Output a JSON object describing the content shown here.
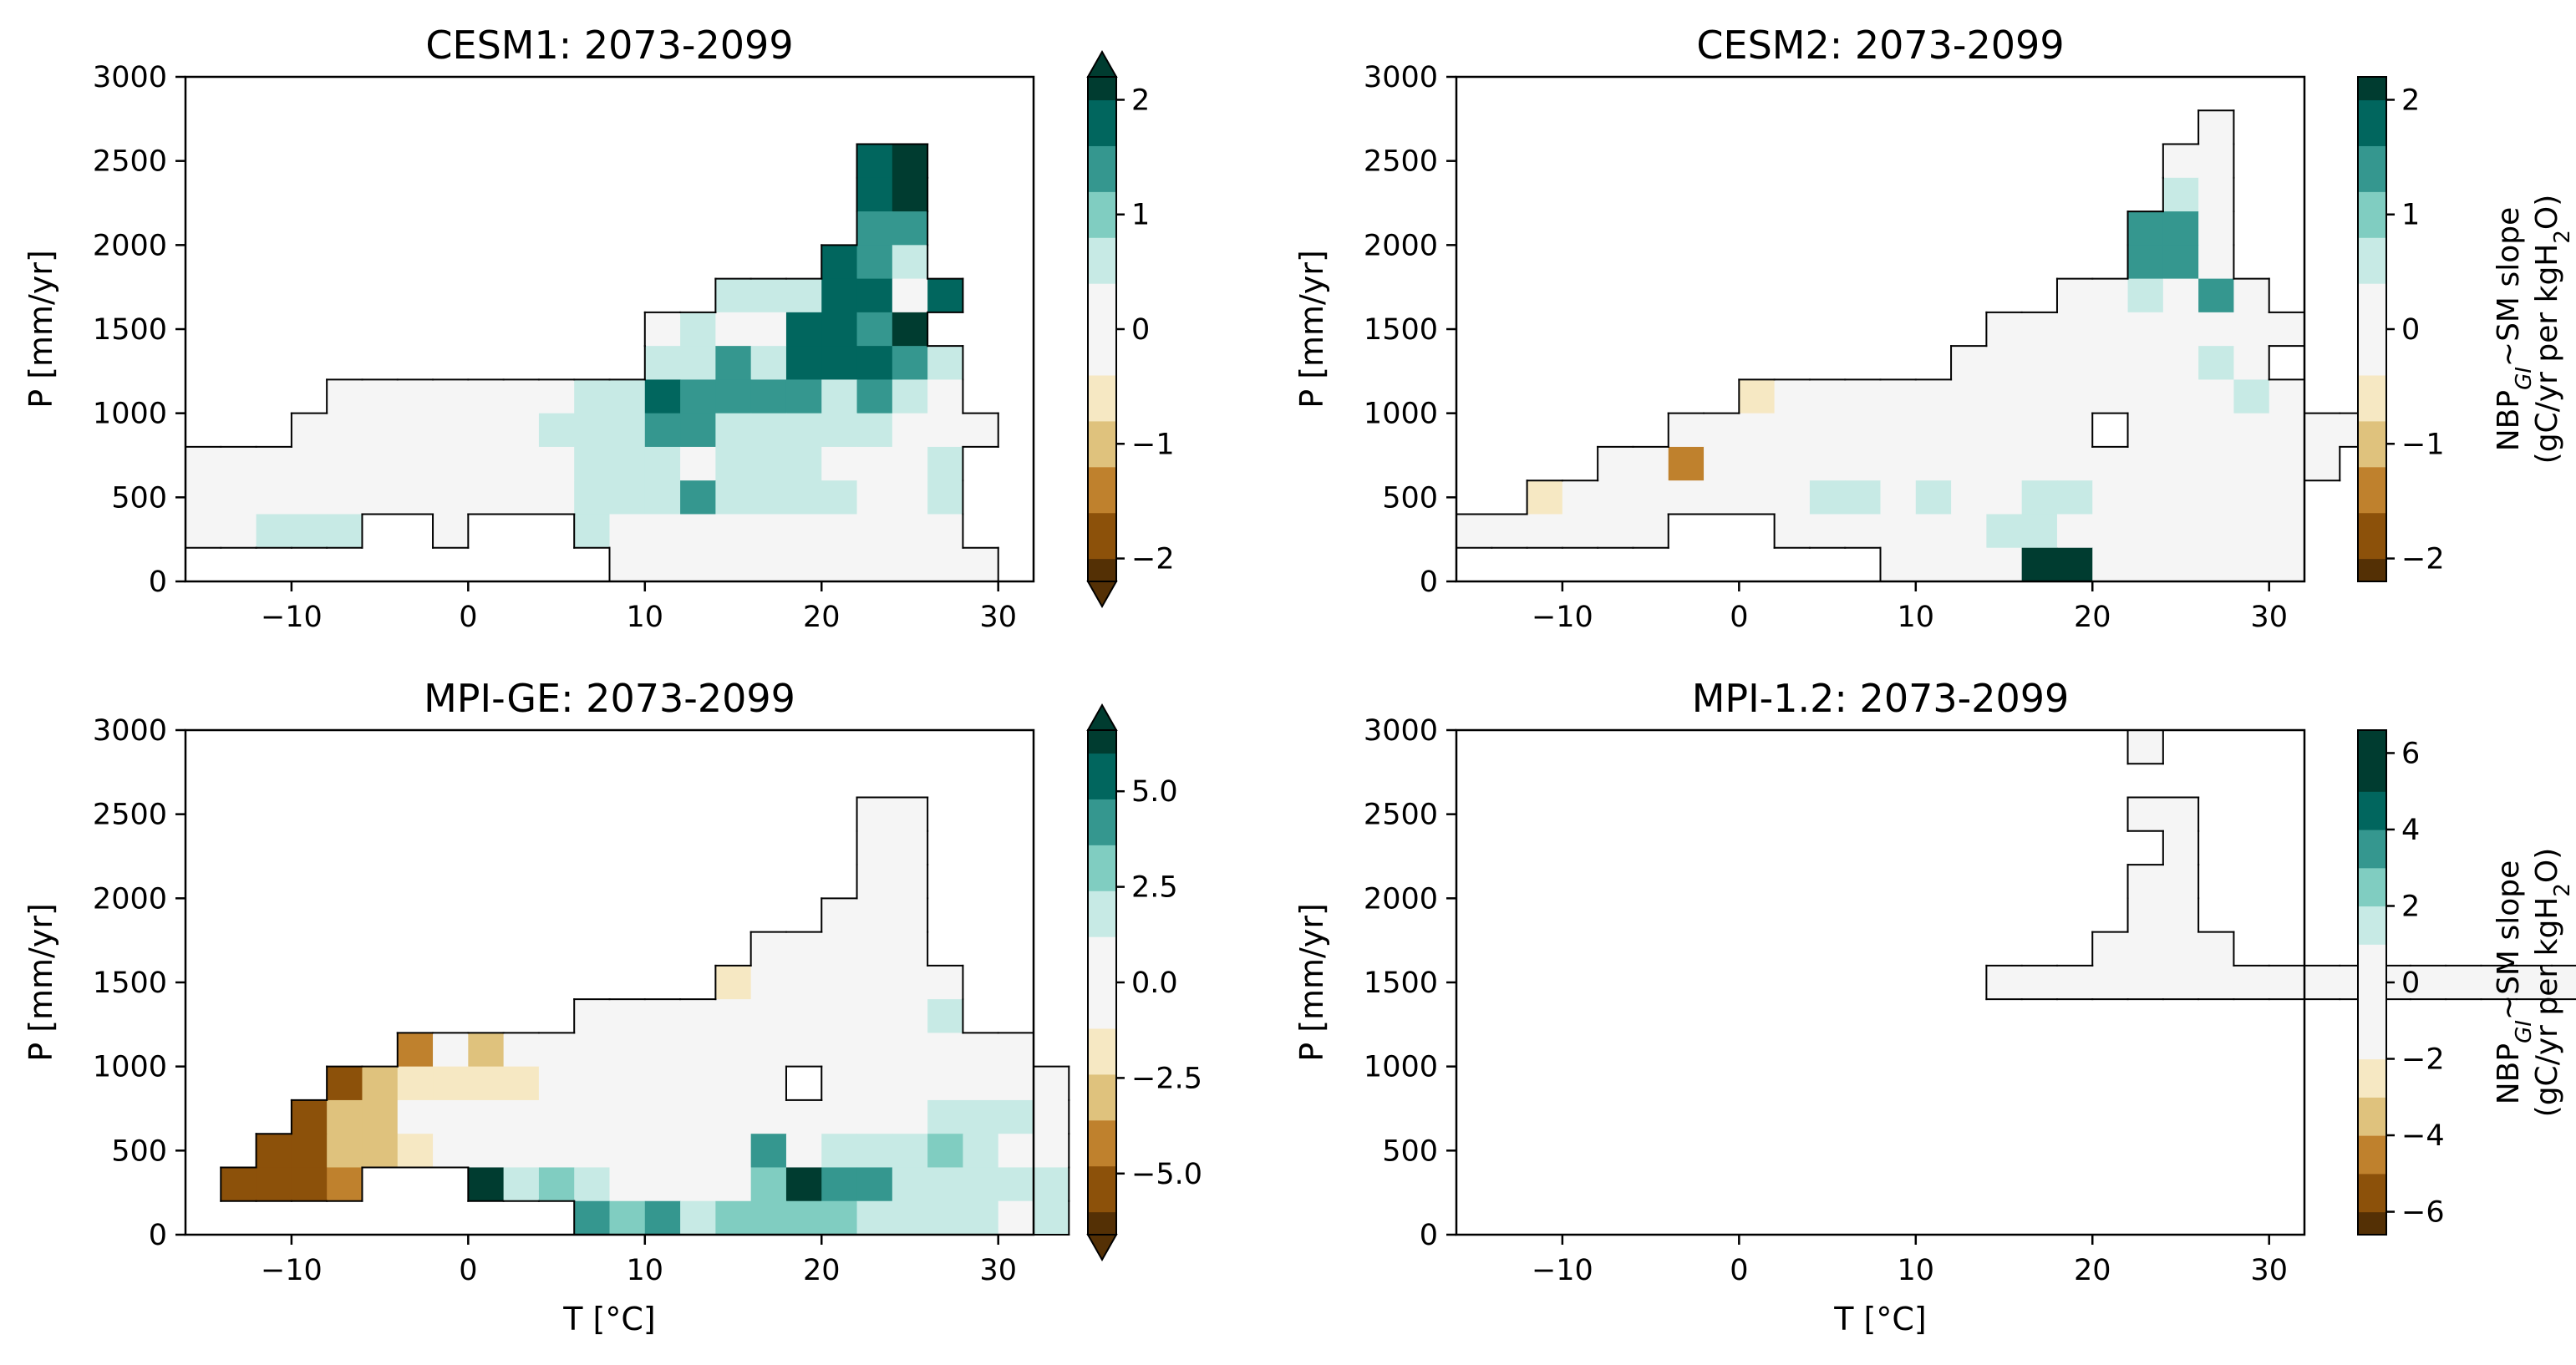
{
  "chart_data": [
    {
      "type": "heatmap",
      "title": "CESM1: 2073-2099",
      "xlabel": "",
      "ylabel": "P [mm/yr]",
      "xlim": [
        -16,
        32
      ],
      "ylim": [
        0,
        3000
      ],
      "xticks": [
        "−10",
        "0",
        "10",
        "20",
        "30"
      ],
      "yticks": [
        "0",
        "500",
        "1000",
        "1500",
        "2000",
        "2500",
        "3000"
      ],
      "bin": {
        "dx": 2,
        "dy": 200
      },
      "colorbar": {
        "levels": [
          -2.2,
          -2,
          -1.6,
          -1.2,
          -0.8,
          -0.4,
          0,
          0.4,
          0.8,
          1.2,
          1.6,
          2,
          2.2
        ],
        "ticks": [
          "−2",
          "−1",
          "0",
          "1",
          "2"
        ],
        "tick_values": [
          -2,
          -1,
          0,
          1,
          2
        ],
        "extend": "both",
        "label": ""
      },
      "rows": [
        {
          "y": 2400,
          "x0": 22,
          "v": [
            1.9,
            2.1
          ]
        },
        {
          "y": 2200,
          "x0": 22,
          "v": [
            1.9,
            2.1
          ]
        },
        {
          "y": 2000,
          "x0": 22,
          "v": [
            1.3,
            1.3
          ]
        },
        {
          "y": 1800,
          "x0": 20,
          "v": [
            1.9,
            1.3,
            0.6
          ]
        },
        {
          "y": 1600,
          "x0": 14,
          "v": [
            0.6,
            0.6,
            0.6,
            1.9,
            1.9,
            0.2,
            1.9
          ]
        },
        {
          "y": 1400,
          "x0": 10,
          "v": [
            0.2,
            0.6,
            0.2,
            0.2,
            1.9,
            1.9,
            1.3,
            2.1
          ]
        },
        {
          "y": 1200,
          "x0": 10,
          "v": [
            0.6,
            0.6,
            1.3,
            0.6,
            1.6,
            1.6,
            1.9,
            1.3,
            0.6
          ]
        },
        {
          "y": 1000,
          "x0": -8,
          "v": [
            0.02,
            0.02,
            0.02,
            0.2,
            0.2,
            0.2,
            0.2,
            0.6,
            0.6,
            1.9,
            1.3,
            1.3,
            1.3,
            1.3,
            0.6,
            1.3,
            0.6,
            0.02
          ]
        },
        {
          "y": 800,
          "x0": -10,
          "v": [
            0.02,
            0.02,
            0.02,
            0.02,
            0.02,
            0.2,
            0.2,
            0.6,
            0.6,
            0.6,
            1.3,
            1.3,
            0.6,
            0.6,
            0.6,
            0.6,
            0.6,
            0.2,
            0.2,
            0.02
          ]
        },
        {
          "y": 600,
          "x0": -16,
          "v": [
            0.02,
            0.02,
            0.02,
            0.02,
            0.02,
            0.02,
            0.02,
            0.02,
            0.2,
            0.2,
            0.2,
            0.6,
            0.6,
            0.6,
            0.2,
            0.6,
            0.6,
            0.6,
            0.2,
            0.02,
            0.2,
            0.6
          ]
        },
        {
          "y": 400,
          "x0": -16,
          "v": [
            0.02,
            0.02,
            0.02,
            0.02,
            0.02,
            0.02,
            0.02,
            0.02,
            0.02,
            0.2,
            0.2,
            0.6,
            0.6,
            0.6,
            1.3,
            0.6,
            0.6,
            0.6,
            0.6,
            0.02,
            0.2,
            0.6
          ]
        },
        {
          "y": 200,
          "x0": -16,
          "v": [
            0.02,
            0.02,
            0.6,
            0.6,
            0.6,
            null,
            null,
            0.2,
            null,
            null,
            null,
            0.6,
            0.2,
            0.2,
            0.2,
            0.2,
            0.2,
            0.2,
            0.2,
            0.02,
            0.02,
            0.02
          ]
        },
        {
          "y": 0,
          "x0": 8,
          "v": [
            0.02,
            0.02,
            0.02,
            0.2,
            0.2,
            0.2,
            0.2,
            0.2,
            0.02,
            0.02,
            0.02
          ]
        }
      ]
    },
    {
      "type": "heatmap",
      "title": "CESM2: 2073-2099",
      "xlabel": "",
      "ylabel": "P [mm/yr]",
      "xlim": [
        -16,
        32
      ],
      "ylim": [
        0,
        3000
      ],
      "xticks": [
        "−10",
        "0",
        "10",
        "20",
        "30"
      ],
      "yticks": [
        "0",
        "500",
        "1000",
        "1500",
        "2000",
        "2500",
        "3000"
      ],
      "bin": {
        "dx": 2,
        "dy": 200
      },
      "colorbar": {
        "levels": [
          -2.2,
          -2,
          -1.6,
          -1.2,
          -0.8,
          -0.4,
          0,
          0.4,
          0.8,
          1.2,
          1.6,
          2,
          2.2
        ],
        "ticks": [
          "−2",
          "−1",
          "0",
          "1",
          "2"
        ],
        "tick_values": [
          -2,
          -1,
          0,
          1,
          2
        ],
        "extend": "neither",
        "label": "NBP_GI~SM slope (gC/yr per kgH2O)",
        "label_line1_parts": [
          "NBP",
          "GI",
          "~SM slope"
        ],
        "label_line2_parts": [
          "(gC/yr per kgH",
          "2",
          "O)"
        ]
      },
      "rows": [
        {
          "y": 2600,
          "x0": 26,
          "v": [
            0.2
          ]
        },
        {
          "y": 2400,
          "x0": 24,
          "v": [
            0.2,
            0.2
          ]
        },
        {
          "y": 2200,
          "x0": 24,
          "v": [
            0.6,
            0.2
          ]
        },
        {
          "y": 2000,
          "x0": 22,
          "v": [
            1.3,
            1.3,
            0.2
          ]
        },
        {
          "y": 1800,
          "x0": 22,
          "v": [
            1.3,
            1.3,
            0.2
          ]
        },
        {
          "y": 1600,
          "x0": 18,
          "v": [
            0.02,
            0.2,
            0.6,
            0.2,
            1.3,
            0.2
          ]
        },
        {
          "y": 1400,
          "x0": 14,
          "v": [
            0.02,
            0.02,
            -0.3,
            0.02,
            0.2,
            0.2,
            0.2,
            0.2,
            0.2
          ]
        },
        {
          "y": 1200,
          "x0": 12,
          "v": [
            0.02,
            0.2,
            0.02,
            0.02,
            0.2,
            0.2,
            0.2,
            0.6,
            0.2
          ]
        },
        {
          "y": 1000,
          "x0": 0,
          "v": [
            -0.6,
            0.02,
            0.02,
            0.02,
            0.02,
            0.02,
            0.02,
            0.2,
            0.2,
            0.2,
            0.02,
            0.2,
            0.2,
            0.2,
            0.6,
            0.2
          ]
        },
        {
          "y": 800,
          "x0": -4,
          "v": [
            0.02,
            0.02,
            -0.3,
            0.02,
            -0.3,
            -0.3,
            0.02,
            0.2,
            0.02,
            0.02,
            0.02,
            0.02,
            null,
            0.2,
            0.2,
            0.2,
            0.2,
            0.2,
            0.02,
            0.2
          ]
        },
        {
          "y": 600,
          "x0": -8,
          "v": [
            -0.3,
            -0.3,
            -1.3,
            -0.3,
            0.02,
            0.02,
            0.02,
            0.02,
            0.2,
            0.2,
            0.2,
            0.2,
            0.2,
            0.2,
            0.2,
            0.02,
            0.2,
            0.02,
            0.02,
            0.02,
            0.02
          ]
        },
        {
          "y": 400,
          "x0": -12,
          "v": [
            -0.6,
            0.02,
            0.02,
            0.02,
            0.02,
            0.02,
            0.02,
            0.02,
            0.6,
            0.6,
            0.2,
            0.6,
            0.2,
            0.2,
            0.6,
            0.6,
            0.2,
            0.02,
            0.02,
            0.02,
            0.02,
            0.02
          ]
        },
        {
          "y": 200,
          "x0": -16,
          "v": [
            0.02,
            0.02,
            -0.3,
            0.02,
            0.02,
            0.02,
            null,
            null,
            null,
            0.02,
            0.2,
            0.2,
            0.2,
            0.2,
            0.2,
            0.6,
            0.6,
            0.2,
            0.02,
            0.02,
            0.02,
            0.02,
            0.02,
            0.02
          ]
        },
        {
          "y": 0,
          "x0": 8,
          "v": [
            0.2,
            0.2,
            0.2,
            0.2,
            2.1,
            2.1,
            0.2,
            0.2,
            0.02,
            0.02,
            0.02,
            0.02
          ]
        }
      ]
    },
    {
      "type": "heatmap",
      "title": "MPI-GE: 2073-2099",
      "xlabel": "T [°C]",
      "ylabel": "P [mm/yr]",
      "xlim": [
        -16,
        32
      ],
      "ylim": [
        0,
        3000
      ],
      "xticks": [
        "−10",
        "0",
        "10",
        "20",
        "30"
      ],
      "yticks": [
        "0",
        "500",
        "1000",
        "1500",
        "2000",
        "2500",
        "3000"
      ],
      "bin": {
        "dx": 2,
        "dy": 200
      },
      "colorbar": {
        "levels": [
          -6.6,
          -6,
          -4.8,
          -3.6,
          -2.4,
          -1.2,
          0,
          1.2,
          2.4,
          3.6,
          4.8,
          6,
          6.6
        ],
        "ticks": [
          "−5.0",
          "−2.5",
          "0.0",
          "2.5",
          "5.0"
        ],
        "tick_values": [
          -5,
          -2.5,
          0,
          2.5,
          5
        ],
        "extend": "both",
        "label": ""
      },
      "rows": [
        {
          "y": 2400,
          "x0": 22,
          "v": [
            0.02,
            0.02
          ]
        },
        {
          "y": 2200,
          "x0": 22,
          "v": [
            -0.6,
            0.02
          ]
        },
        {
          "y": 2000,
          "x0": 22,
          "v": [
            -0.6,
            0.02
          ]
        },
        {
          "y": 1800,
          "x0": 20,
          "v": [
            0.02,
            0.02,
            0.02
          ]
        },
        {
          "y": 1600,
          "x0": 16,
          "v": [
            0.02,
            0.02,
            0.02,
            0.02,
            0.02
          ]
        },
        {
          "y": 1400,
          "x0": 14,
          "v": [
            -1.8,
            0.02,
            0.02,
            0.02,
            0.6,
            0.6,
            0.02
          ]
        },
        {
          "y": 1200,
          "x0": 6,
          "v": [
            -0.6,
            -0.6,
            0.02,
            0.02,
            0.02,
            0.6,
            0.6,
            0.6,
            0.6,
            0.6,
            1.8
          ]
        },
        {
          "y": 1000,
          "x0": -4,
          "v": [
            -4.2,
            0.02,
            -3.0,
            0.02,
            -0.6,
            -0.6,
            0.02,
            0.02,
            0.02,
            0.02,
            0.02,
            0.02,
            0.02,
            0.6,
            0.6,
            0.6,
            0.6,
            0.6
          ]
        },
        {
          "y": 800,
          "x0": -8,
          "v": [
            -5.4,
            -3.0,
            -1.8,
            -1.8,
            -1.8,
            -1.8,
            -0.6,
            -0.6,
            0.02,
            0.02,
            0.02,
            0.02,
            0.02,
            null,
            0.02,
            0.2,
            0.6,
            0.6,
            0.6,
            0.6,
            0.6
          ]
        },
        {
          "y": 600,
          "x0": -10,
          "v": [
            -5.4,
            -3.0,
            -3.0,
            -0.6,
            -0.6,
            0.02,
            0.02,
            0.02,
            0.02,
            0.02,
            0.02,
            0.6,
            0.02,
            0.02,
            0.6,
            0.6,
            0.6,
            0.6,
            1.8,
            1.8,
            1.8,
            0.6
          ]
        },
        {
          "y": 400,
          "x0": -12,
          "v": [
            -5.4,
            -5.4,
            -3.0,
            -3.0,
            -1.8,
            -0.6,
            0.02,
            0.6,
            0.02,
            0.02,
            0.02,
            0.6,
            0.6,
            0.02,
            4.2,
            0.6,
            1.8,
            1.8,
            1.8,
            3.0,
            1.8,
            0.6,
            0.6
          ]
        },
        {
          "y": 200,
          "x0": -14,
          "v": [
            -5.4,
            -5.4,
            -5.4,
            -4.2,
            null,
            null,
            null,
            6.3,
            1.8,
            3.0,
            1.8,
            0.6,
            0.6,
            0.6,
            0.6,
            3.0,
            6.3,
            4.2,
            4.2,
            1.8,
            1.8,
            1.8,
            1.8,
            1.8
          ]
        },
        {
          "y": 0,
          "x0": 6,
          "v": [
            4.2,
            3.0,
            4.2,
            1.8,
            3.0,
            3.0,
            3.0,
            3.0,
            1.8,
            1.8,
            1.8,
            1.8,
            0.6,
            1.8
          ]
        }
      ]
    },
    {
      "type": "heatmap",
      "title": "MPI-1.2: 2073-2099",
      "xlabel": "T [°C]",
      "ylabel": "P [mm/yr]",
      "xlim": [
        -16,
        32
      ],
      "ylim": [
        0,
        3000
      ],
      "xticks": [
        "−10",
        "0",
        "10",
        "20",
        "30"
      ],
      "yticks": [
        "0",
        "500",
        "1000",
        "1500",
        "2000",
        "2500",
        "3000"
      ],
      "bin": {
        "dx": 2,
        "dy": 200
      },
      "colorbar": {
        "levels": [
          -6.6,
          -6,
          -5,
          -4,
          -3,
          -2,
          -1,
          0,
          1,
          2,
          3,
          4,
          5,
          6,
          6.6
        ],
        "ticks": [
          "−6",
          "−4",
          "−2",
          "0",
          "2",
          "4",
          "6"
        ],
        "tick_values": [
          -6,
          -4,
          -2,
          0,
          2,
          4,
          6
        ],
        "extend": "neither",
        "label": "NBP_GI~SM slope (gC/yr per kgH2O)",
        "label_line1_parts": [
          "NBP",
          "GI",
          "~SM slope"
        ],
        "label_line2_parts": [
          "(gC/yr per kgH",
          "2",
          "O)"
        ]
      },
      "rows": [
        {
          "y": 2800,
          "x0": 22,
          "v": [
            0.3
          ]
        },
        {
          "y": 2400,
          "x0": 22,
          "v": [
            -1.5,
            0.3
          ]
        },
        {
          "y": 2200,
          "x0": 24,
          "v": [
            0.3
          ]
        },
        {
          "y": 2000,
          "x0": 22,
          "v": [
            0.3,
            0.3
          ]
        },
        {
          "y": 1800,
          "x0": 22,
          "v": [
            0.3,
            0.3
          ]
        },
        {
          "y": 1600,
          "x0": 20,
          "v": [
            0.3,
            0.3,
            0.3,
            0.3
          ]
        },
        {
          "y": 1400,
          "x0": 14,
          "v": [
            0.3,
            0.3,
            0.3,
            0.3,
            0.3,
            0.3,
            0.3,
            0.3,
            0.3,
            0.3,
            0.3,
            0.3,
            0.3,
            0.3,
            0.3,
            0.3,
            0.3,
            0.3,
            0.3,
            0.3,
            0.3,
            0.3,
            0.3,
            0.3,
            0.3,
            0.3,
            0.3
          ]
        }
      ]
    }
  ]
}
